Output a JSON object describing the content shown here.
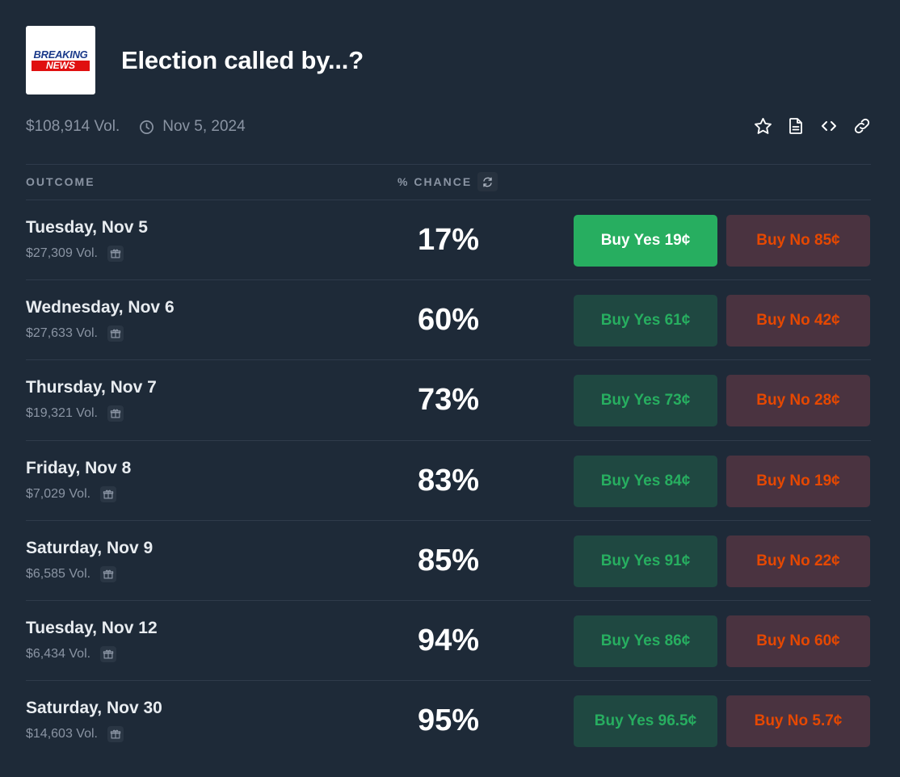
{
  "header": {
    "logo_top": "BREAKING",
    "logo_bottom": "NEWS",
    "title": "Election called by...?"
  },
  "meta": {
    "volume": "$108,914 Vol.",
    "date": "Nov 5, 2024"
  },
  "table": {
    "col_outcome": "OUTCOME",
    "col_chance": "% CHANCE"
  },
  "rows": [
    {
      "name": "Tuesday, Nov 5",
      "volume": "$27,309 Vol.",
      "chance": "17%",
      "yes": "Buy Yes 19¢",
      "no": "Buy No 85¢",
      "yes_active": true
    },
    {
      "name": "Wednesday, Nov 6",
      "volume": "$27,633 Vol.",
      "chance": "60%",
      "yes": "Buy Yes 61¢",
      "no": "Buy No 42¢",
      "yes_active": false
    },
    {
      "name": "Thursday, Nov 7",
      "volume": "$19,321 Vol.",
      "chance": "73%",
      "yes": "Buy Yes 73¢",
      "no": "Buy No 28¢",
      "yes_active": false
    },
    {
      "name": "Friday, Nov 8",
      "volume": "$7,029 Vol.",
      "chance": "83%",
      "yes": "Buy Yes 84¢",
      "no": "Buy No 19¢",
      "yes_active": false
    },
    {
      "name": "Saturday, Nov 9",
      "volume": "$6,585 Vol.",
      "chance": "85%",
      "yes": "Buy Yes 91¢",
      "no": "Buy No 22¢",
      "yes_active": false
    },
    {
      "name": "Tuesday, Nov 12",
      "volume": "$6,434 Vol.",
      "chance": "94%",
      "yes": "Buy Yes 86¢",
      "no": "Buy No 60¢",
      "yes_active": false
    },
    {
      "name": "Saturday, Nov 30",
      "volume": "$14,603 Vol.",
      "chance": "95%",
      "yes": "Buy Yes 96.5¢",
      "no": "Buy No 5.7¢",
      "yes_active": false
    }
  ],
  "icons": {
    "clock": "clock-icon",
    "star": "star-icon",
    "document": "document-icon",
    "embed": "code-icon",
    "link": "link-icon",
    "refresh": "refresh-icon",
    "gift": "gift-icon"
  },
  "colors": {
    "background": "#1e2a38",
    "yes_text": "#27ae60",
    "yes_bg": "#1f4841",
    "yes_active_bg": "#27ae60",
    "no_text": "#e64800",
    "no_bg": "#4a3340",
    "muted": "#8a94a3"
  }
}
